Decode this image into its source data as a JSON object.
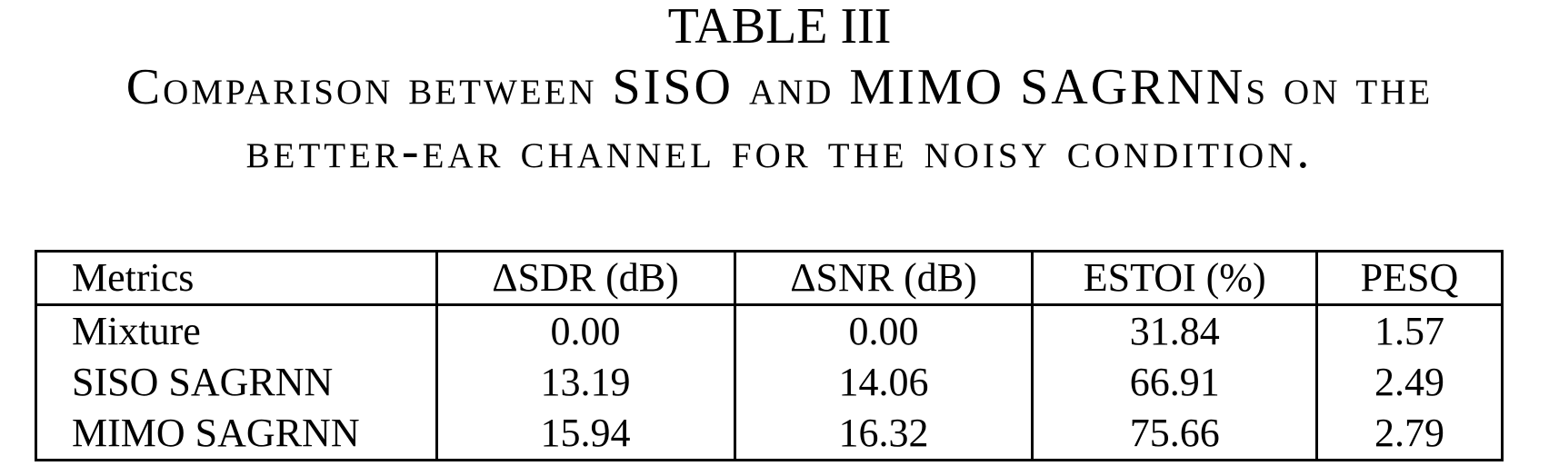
{
  "caption": {
    "table_label": "TABLE III",
    "title_line1": "Comparison between SISO and MIMO SAGRNNs on the",
    "title_line2": "better-ear channel for the noisy condition."
  },
  "table": {
    "headers": [
      "Metrics",
      "ΔSDR (dB)",
      "ΔSNR (dB)",
      "ESTOI (%)",
      "PESQ"
    ],
    "rows": [
      [
        "Mixture",
        "0.00",
        "0.00",
        "31.84",
        "1.57"
      ],
      [
        "SISO SAGRNN",
        "13.19",
        "14.06",
        "66.91",
        "2.49"
      ],
      [
        "MIMO SAGRNN",
        "15.94",
        "16.32",
        "75.66",
        "2.79"
      ]
    ]
  }
}
